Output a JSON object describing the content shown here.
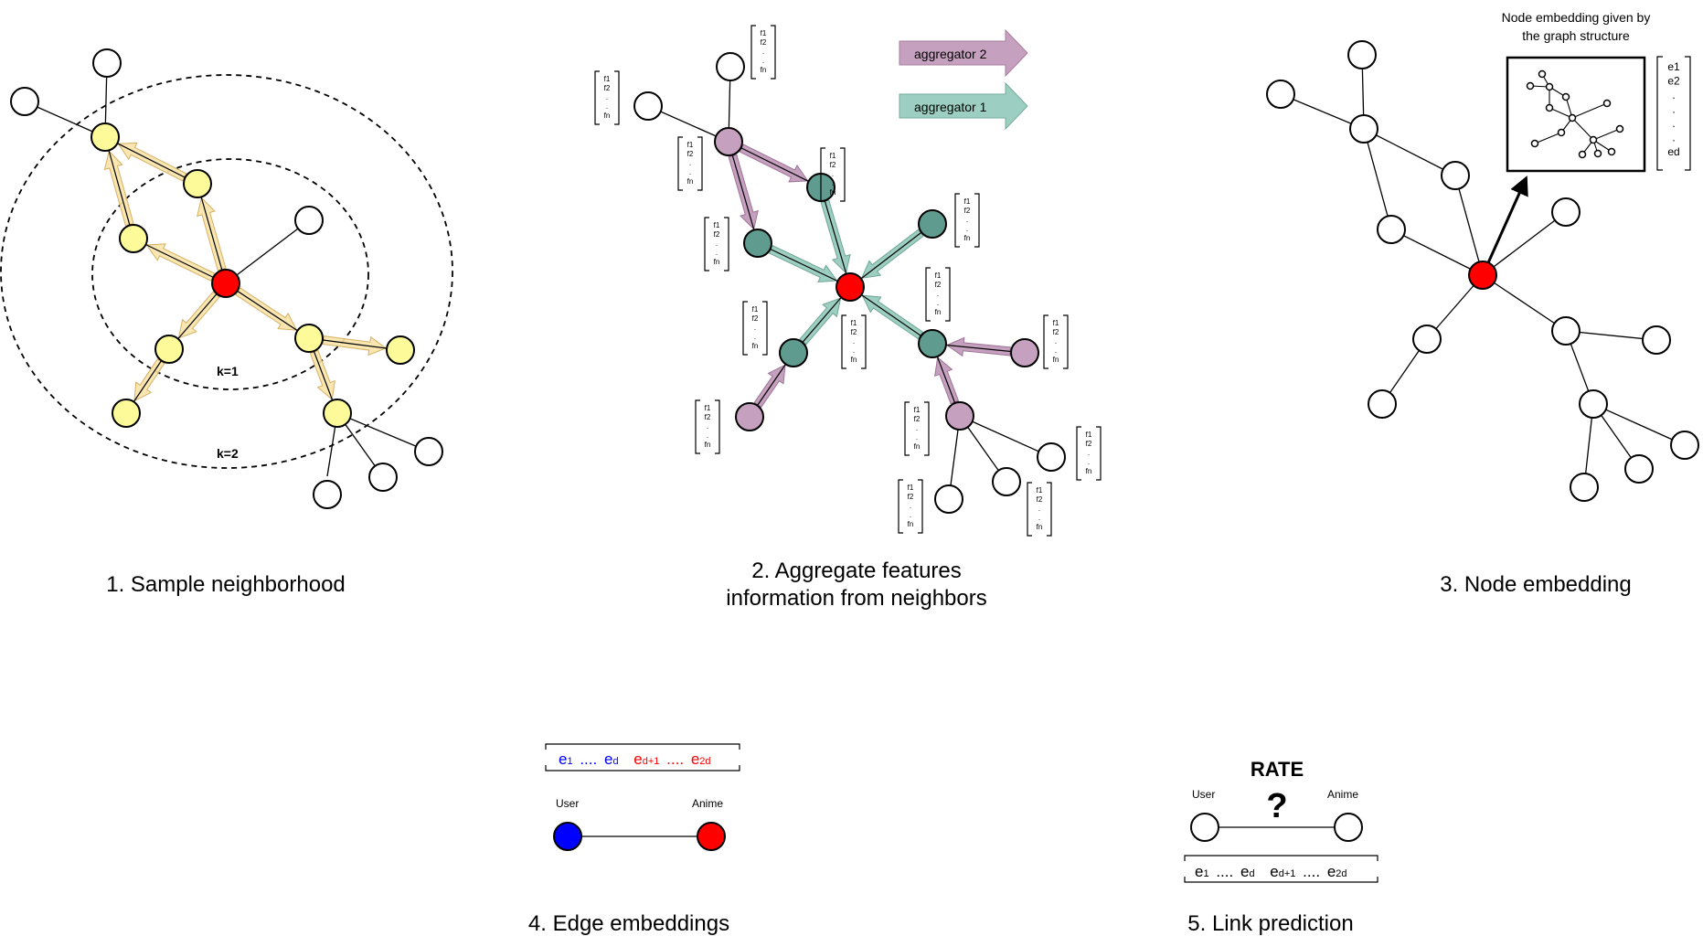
{
  "panels": {
    "p1": {
      "caption": "1. Sample neighborhood",
      "k1": "k=1",
      "k2": "k=2"
    },
    "p2": {
      "caption_line1": "2. Aggregate features",
      "caption_line2": "information from neighbors",
      "agg2": "aggregator 2",
      "agg1": "aggregator 1",
      "feature_vector": [
        "f1",
        "f2",
        ".",
        ".",
        "fn"
      ]
    },
    "p3": {
      "caption": "3. Node embedding",
      "title_line1": "Node embedding given by",
      "title_line2": "the graph structure",
      "embedding_vector": [
        "e1",
        "e2",
        ".",
        ".",
        ".",
        ".",
        "ed"
      ]
    },
    "p4": {
      "caption": "4. Edge embeddings",
      "user_label": "User",
      "anime_label": "Anime",
      "vec_first": "e",
      "vec_first_sub": "1",
      "vec_dots1": "....",
      "vec_d": "e",
      "vec_d_sub": "d",
      "vec_d1": "e",
      "vec_d1_sub": "d+1",
      "vec_dots2": "....",
      "vec_2d": "e",
      "vec_2d_sub": "2d"
    },
    "p5": {
      "caption": "5. Link prediction",
      "rate": "RATE",
      "question": "?",
      "user_label": "User",
      "anime_label": "Anime"
    }
  },
  "colors": {
    "sampled": "#fdfb99",
    "target": "#ff0000",
    "aggregator1": "#5f9c8f",
    "aggregator2": "#c6a1bf",
    "user": "#0000ff",
    "arrow_sample": "#f7dea0",
    "embed_first_half": "#0000ff",
    "embed_second_half": "#ff0000"
  }
}
